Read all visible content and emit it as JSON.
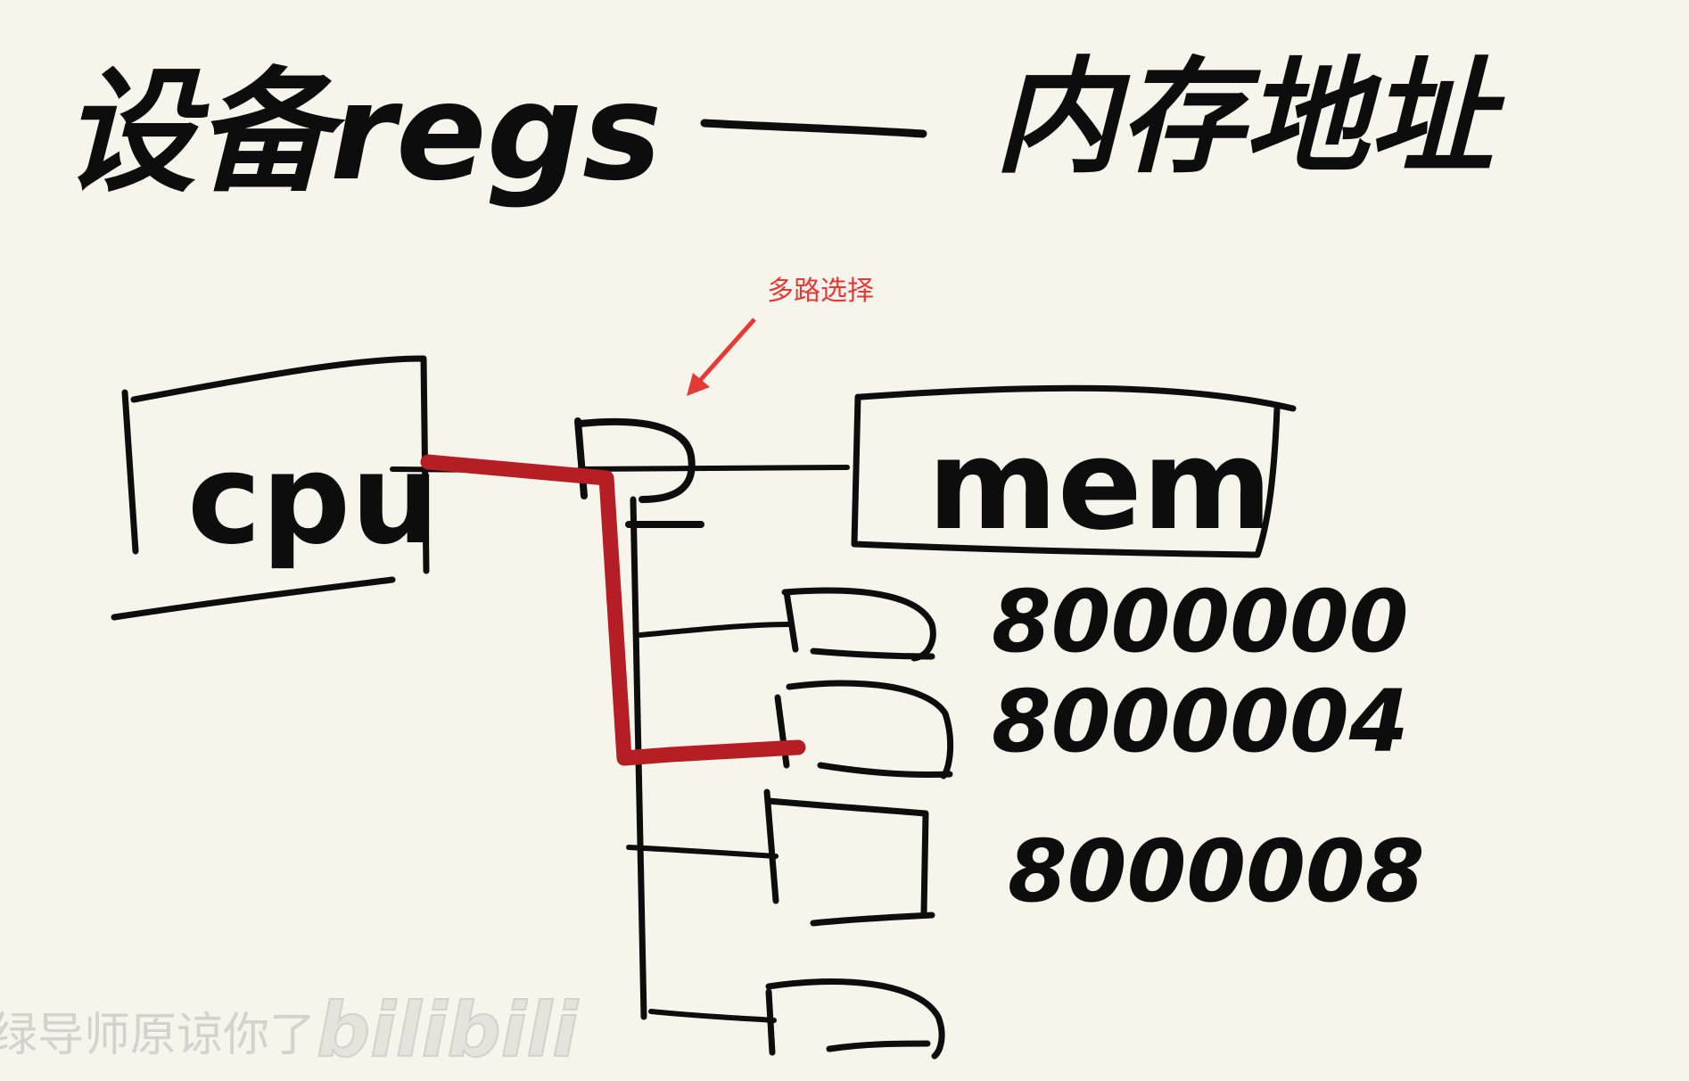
{
  "title": {
    "left": "设备regs",
    "dash": "——",
    "right": "内存地址"
  },
  "annotation": {
    "label": "多路选择",
    "color": "#e53935"
  },
  "blocks": {
    "cpu": "cpu",
    "mem": "mem"
  },
  "addresses": [
    "8000000",
    "8000004",
    "8000008"
  ],
  "watermark": {
    "text": "绿导师原谅你了",
    "logo": "bilibili"
  },
  "colors": {
    "ink": "#0d0d0d",
    "path": "#b41e24",
    "background": "#f6f5ec"
  }
}
